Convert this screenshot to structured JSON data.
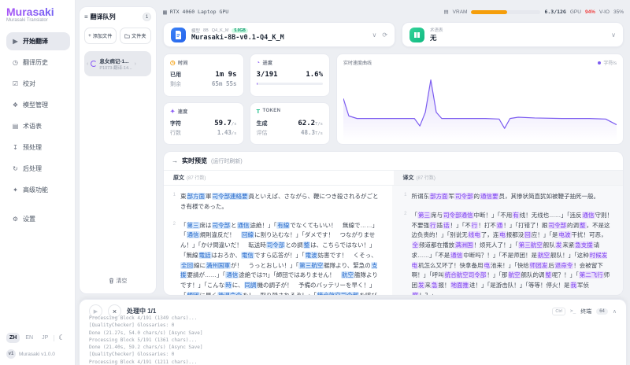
{
  "sidebar": {
    "logo": "Murasaki",
    "subtitle": "Murasaki Translator",
    "items": [
      {
        "label": "开始翻译",
        "glyph": "▶",
        "active": true
      },
      {
        "label": "翻译历史",
        "glyph": "◷"
      },
      {
        "label": "校对",
        "glyph": "☑"
      },
      {
        "label": "模型管理",
        "glyph": "❖"
      },
      {
        "label": "术语表",
        "glyph": "▤"
      },
      {
        "label": "预处理",
        "glyph": "↧"
      },
      {
        "label": "后处理",
        "glyph": "↻"
      },
      {
        "label": "高级功能",
        "glyph": "✦"
      },
      {
        "label": "设置",
        "glyph": "⚙"
      }
    ],
    "languages": [
      {
        "label": "ZH",
        "active": true
      },
      {
        "label": "EN"
      },
      {
        "label": "JP"
      }
    ],
    "version_badge": "v1",
    "version_text": "Murasaki v1.0.0"
  },
  "queue": {
    "title": "翻译队列",
    "badge": "1",
    "add_file_label": "添加文件",
    "folder_label": "文件夹",
    "item": {
      "title": "息女病记-1...",
      "subtitle": "P1073-翻译-14..."
    },
    "clear_label": "清空"
  },
  "header": {
    "gpu_name": "RTX 4060 Laptop GPU",
    "vram_label": "VRAM",
    "vram_used": "6.3/12G",
    "vram_pct": 52,
    "gpu_util_label": "GPU",
    "gpu_util": "94%",
    "vio_label": "V-IO",
    "vio": "35%"
  },
  "model": {
    "label": "模型",
    "param_tag": "8B",
    "quant_tag": "Q4_K_M",
    "size_badge": "5.0GB",
    "name": "Murasaki-8B-v0.1-Q4_K_M",
    "glossary_label": "术语表",
    "glossary_value": "无"
  },
  "stats": {
    "time": {
      "title": "时间",
      "row1_label": "已用",
      "row1_value": "1m 9s",
      "row2_label": "剩余",
      "row2_value": "65m 55s"
    },
    "progress": {
      "title": "进度",
      "value": "3/191",
      "percent": "1.6%",
      "bar_pct": 1.6
    },
    "speed": {
      "title": "速度",
      "row1_label": "字符",
      "row1_value": "59.7",
      "row1_unit": "/s",
      "row2_label": "行数",
      "row2_value": "1.43",
      "row2_unit": "/s"
    },
    "token": {
      "title": "TOKEN",
      "row1_label": "生成",
      "row1_value": "62.2",
      "row1_unit": "T/s",
      "row2_label": "评估",
      "row2_value": "48.3",
      "row2_unit": "T/s"
    }
  },
  "chart_data": {
    "type": "line",
    "title": "实时速度曲线",
    "legend": "字符/s",
    "x": [
      0,
      2,
      5,
      10,
      15,
      20,
      26,
      28,
      30,
      32,
      34,
      36,
      45,
      52,
      57,
      59,
      61,
      64,
      70,
      80,
      90,
      96,
      100
    ],
    "y": [
      62,
      34,
      30,
      30,
      30,
      30,
      30,
      18,
      40,
      92,
      40,
      30,
      30,
      30,
      29,
      14,
      30,
      32,
      31,
      30,
      30,
      29,
      20
    ]
  },
  "preview": {
    "title": "实时预览",
    "title_suffix": "(运行时刷新)",
    "source_label": "原文",
    "source_count": "(87 行数)",
    "target_label": "译文",
    "target_count": "(87 行数)",
    "source_paragraphs": [
      {
        "num": "1",
        "segments": [
          [
            "東",
            0
          ],
          [
            "部方面",
            1
          ],
          [
            "軍",
            0
          ],
          [
            "司令部連絡要",
            1
          ],
          [
            "員といえば、さながら、鞭につき殺されるがごとき有様であった。",
            0
          ]
        ]
      },
      {
        "num": "2",
        "segments": [
          [
            "「",
            0
          ],
          [
            "第三",
            1
          ],
          [
            "席は",
            0
          ],
          [
            "司令部",
            1
          ],
          [
            "と",
            0
          ],
          [
            "通信",
            1
          ],
          [
            "途絶！」「",
            0
          ],
          [
            "有線",
            1
          ],
          [
            "でなくてもいい！　無線で……」「",
            0
          ],
          [
            "通信",
            1
          ],
          [
            "規則違反だ！　",
            0
          ],
          [
            "回線",
            1
          ],
          [
            "に割り込むな！」「ダメです！　つながりません！」「かけ間違いだ！　転送時",
            0
          ],
          [
            "司令部",
            1
          ],
          [
            "との調",
            0
          ],
          [
            "整",
            1
          ],
          [
            "は、こちらではない！」「無線",
            0
          ],
          [
            "電話",
            1
          ],
          [
            "はおろか、",
            0
          ],
          [
            "電信",
            1
          ],
          [
            "ですら応答が！」「",
            0
          ],
          [
            "電波",
            1
          ],
          [
            "妨害です！　くそっ、",
            0
          ],
          [
            "全回",
            1
          ],
          [
            "線に",
            0
          ],
          [
            "満州国軍",
            1
          ],
          [
            "が！　うっとおしい！」「",
            0
          ],
          [
            "第三航空",
            1
          ],
          [
            "艦隊より、緊急の",
            0
          ],
          [
            "支援",
            1
          ],
          [
            "要請が……」「",
            0
          ],
          [
            "通信",
            1
          ],
          [
            "途絶では?!」「師団ではありません！　",
            0
          ],
          [
            "航空",
            1
          ],
          [
            "艦隊よりです！」「こんな",
            0
          ],
          [
            "時",
            1
          ],
          [
            "に、",
            0
          ],
          [
            "同調",
            1
          ],
          [
            "機の調子が！　予備のバッテリーを早く！」「",
            0
          ],
          [
            "師団",
            1
          ],
          [
            "に早く",
            0
          ],
          [
            "後退命令",
            1
          ],
          [
            "を！　取り残されるぞ！」「",
            0
          ],
          [
            "統合航空司令部",
            1
          ],
          [
            "を呼び出せ！」「",
            0
          ],
          [
            "航空",
            1
          ],
          [
            "艦隊と",
            0
          ],
          [
            "師団",
            1
          ],
          [
            "は!?」「",
            0
          ],
          [
            "第二飛行",
            1
          ],
          [
            "師団から",
            0
          ],
          [
            "写真班",
            1
          ],
          [
            "！　",
            0
          ],
          [
            "地上爆進",
            1
          ],
          [
            "が！」「パルチザンです！」「待て！　撃つのを",
            0
          ]
        ]
      }
    ],
    "target_paragraphs": [
      {
        "num": "1",
        "segments": [
          [
            "所谓东",
            0
          ],
          [
            "部方面",
            1
          ],
          [
            "军",
            0
          ],
          [
            "司令部",
            1
          ],
          [
            "的",
            0
          ],
          [
            "通信要",
            1
          ],
          [
            "员，其惨状简直犹如被鞭子抽死一般。",
            0
          ]
        ]
      },
      {
        "num": "2",
        "segments": [
          [
            "「",
            0
          ],
          [
            "第三",
            1
          ],
          [
            "席与",
            0
          ],
          [
            "司令部通信",
            1
          ],
          [
            "中断！」「不用",
            0
          ],
          [
            "有",
            1
          ],
          [
            "线！无线也……」「违反",
            0
          ],
          [
            "通信",
            1
          ],
          [
            "守则！不要强",
            0
          ],
          [
            "行",
            1
          ],
          [
            "插",
            0
          ],
          [
            "话",
            1
          ],
          [
            "！」「不",
            0
          ],
          [
            "行",
            1
          ],
          [
            "！打不",
            0
          ],
          [
            "通",
            1
          ],
          [
            "！」「打错了！跟",
            0
          ],
          [
            "司令部",
            1
          ],
          [
            "的调",
            0
          ],
          [
            "整",
            1
          ],
          [
            "，不是这边负责的！」「别说无",
            0
          ],
          [
            "线电",
            1
          ],
          [
            "了，连",
            0
          ],
          [
            "电",
            1
          ],
          [
            "报都没",
            0
          ],
          [
            "回",
            1
          ],
          [
            "应！」「是",
            0
          ],
          [
            "电波",
            1
          ],
          [
            "干扰！可恶，",
            0
          ],
          [
            "全",
            1
          ],
          [
            "频道都在播放",
            0
          ],
          [
            "满洲国",
            1
          ],
          [
            "！烦死人了！」「",
            0
          ],
          [
            "第三航空",
            1
          ],
          [
            "舰队",
            0
          ],
          [
            "发",
            1
          ],
          [
            "来紧",
            0
          ],
          [
            "急支援",
            1
          ],
          [
            "请求……」「不是",
            0
          ],
          [
            "通信",
            1
          ],
          [
            "中断吗？！」「不是师团！是",
            0
          ],
          [
            "航空",
            1
          ],
          [
            "舰队！」「这种",
            0
          ],
          [
            "时候发电",
            1
          ],
          [
            "机怎么又坏了！快拿备用",
            0
          ],
          [
            "电",
            1
          ],
          [
            "池来！」「快给",
            0
          ],
          [
            "师团发",
            1
          ],
          [
            "后",
            0
          ],
          [
            "退命令",
            1
          ],
          [
            "！会被留下啊！」「呼叫",
            0
          ],
          [
            "统合航空司令部",
            1
          ],
          [
            "！」「那",
            0
          ],
          [
            "航空",
            1
          ],
          [
            "舰队的调",
            0
          ],
          [
            "整",
            1
          ],
          [
            "呢？！」「",
            0
          ],
          [
            "第二飞行",
            1
          ],
          [
            "师团",
            0
          ],
          [
            "发",
            1
          ],
          [
            "来",
            0
          ],
          [
            "急",
            1
          ],
          [
            "报！",
            0
          ],
          [
            "地面推",
            1
          ],
          [
            "进！」「是游击队！」「等等！停火！是",
            0
          ],
          [
            "我",
            1
          ],
          [
            "军侦",
            0
          ],
          [
            "察",
            1
          ],
          [
            "！？」",
            0
          ]
        ]
      }
    ]
  },
  "console": {
    "status": "处理中 1/1",
    "ctrl_hint": "Ctrl",
    "terminal_label": "终端",
    "terminal_count": "64",
    "log_lines": [
      "Processing Block 4/191 (1349 chars)...",
      "[QualityChecker] Glossaries: 0",
      "Done (21.27s, 54.0 chars/s) [Async Save]",
      "Processing Block 5/191 (1361 chars)...",
      "Done (21.40s, 59.2 chars/s) [Async Save]",
      "[QualityChecker] Glossaries: 0",
      "Processing Block 4/191 (1211 chars)..."
    ]
  }
}
